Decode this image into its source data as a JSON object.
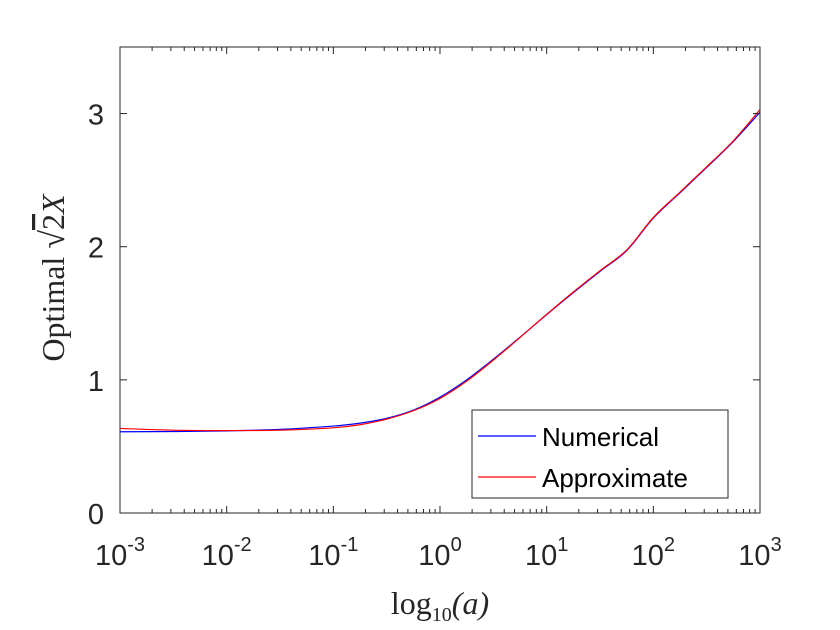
{
  "chart_data": {
    "type": "line",
    "title": "",
    "xscale": "log",
    "xlim_exponent": [
      -3,
      3
    ],
    "ylim": [
      0,
      3.5
    ],
    "xlabel": {
      "func": "log",
      "subscript": "10",
      "arg": "(a)"
    },
    "ylabel": {
      "prefix": "Optimal ",
      "root_arg": "2",
      "suffix": "X"
    },
    "x_ticks": [
      {
        "base": "10",
        "exp": "-3",
        "value": 0.001
      },
      {
        "base": "10",
        "exp": "-2",
        "value": 0.01
      },
      {
        "base": "10",
        "exp": "-1",
        "value": 0.1
      },
      {
        "base": "10",
        "exp": "0",
        "value": 1
      },
      {
        "base": "10",
        "exp": "1",
        "value": 10
      },
      {
        "base": "10",
        "exp": "2",
        "value": 100
      },
      {
        "base": "10",
        "exp": "3",
        "value": 1000
      }
    ],
    "y_ticks": [
      {
        "value": 0,
        "label": "0"
      },
      {
        "value": 1,
        "label": "1"
      },
      {
        "value": 2,
        "label": "2"
      },
      {
        "value": 3,
        "label": "3"
      }
    ],
    "legend_position": "bottom-right",
    "series": [
      {
        "name": "Numerical",
        "color": "#0000ff",
        "x_exponent": [
          -3,
          -2.5,
          -2,
          -1.5,
          -1,
          -0.75,
          -0.5,
          -0.25,
          0,
          0.25,
          0.5,
          0.75,
          1,
          1.25,
          1.5,
          1.75,
          2,
          2.25,
          2.5,
          2.75,
          3
        ],
        "y": [
          0.61,
          0.612,
          0.617,
          0.628,
          0.653,
          0.675,
          0.711,
          0.772,
          0.87,
          1.0,
          1.155,
          1.32,
          1.49,
          1.655,
          1.815,
          1.97,
          2.215,
          2.405,
          2.595,
          2.79,
          3.01
        ]
      },
      {
        "name": "Approximate",
        "color": "#ff0000",
        "x_exponent": [
          -3,
          -2.5,
          -2,
          -1.5,
          -1,
          -0.75,
          -0.5,
          -0.25,
          0,
          0.25,
          0.5,
          0.75,
          1,
          1.25,
          1.5,
          1.75,
          2,
          2.25,
          2.5,
          2.75,
          3
        ],
        "y": [
          0.635,
          0.622,
          0.619,
          0.622,
          0.64,
          0.663,
          0.705,
          0.768,
          0.86,
          0.99,
          1.148,
          1.318,
          1.492,
          1.66,
          1.82,
          1.975,
          2.22,
          2.41,
          2.6,
          2.795,
          3.03
        ]
      }
    ]
  }
}
